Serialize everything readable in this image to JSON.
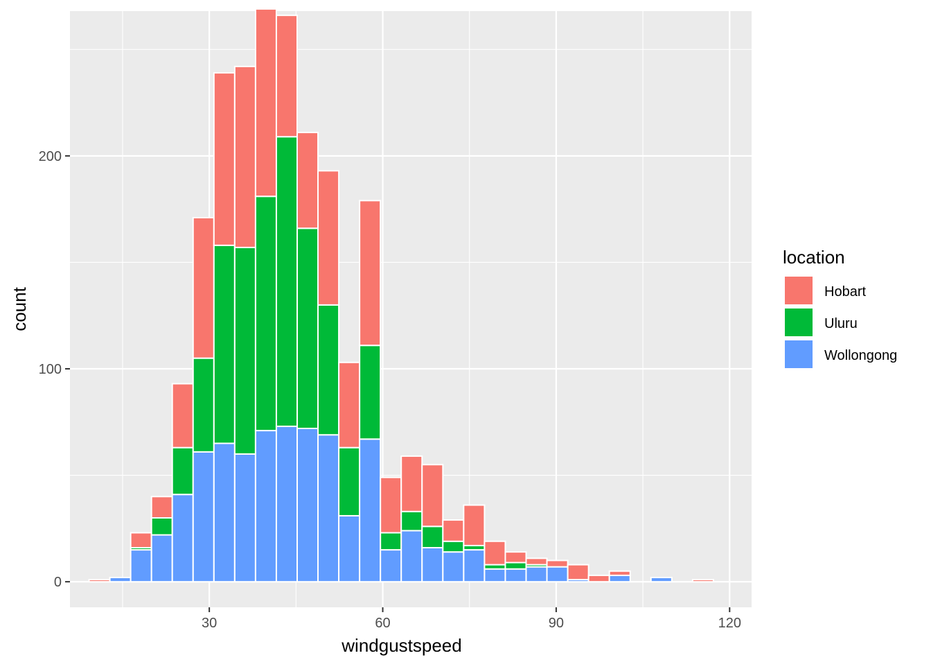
{
  "chart_data": {
    "type": "bar",
    "stacked": true,
    "binwidth": 3.6,
    "xlabel": "windgustspeed",
    "ylabel": "count",
    "xlim": [
      5.9,
      123.8
    ],
    "ylim": [
      -12,
      268
    ],
    "xticks": [
      30,
      60,
      90,
      120
    ],
    "xtick_labels": [
      "30",
      "60",
      "90",
      "120"
    ],
    "yticks": [
      0,
      100,
      200
    ],
    "ytick_labels": [
      "0",
      "100",
      "200"
    ],
    "grid": true,
    "legend_position": "right",
    "legend_title": "location",
    "x": [
      11.0,
      14.6,
      18.2,
      21.8,
      25.4,
      29.0,
      32.6,
      36.2,
      39.8,
      43.4,
      47.0,
      50.6,
      54.2,
      57.8,
      61.4,
      65.0,
      68.6,
      72.2,
      75.8,
      79.4,
      83.0,
      86.6,
      90.2,
      93.8,
      97.4,
      101.0,
      104.6,
      108.2,
      111.8,
      115.4
    ],
    "series": [
      {
        "name": "Hobart",
        "color": "#F8766D",
        "values": [
          1,
          0,
          7,
          10,
          30,
          66,
          81,
          85,
          88,
          57,
          45,
          63,
          40,
          68,
          26,
          26,
          29,
          10,
          19,
          11,
          5,
          3,
          3,
          7,
          3,
          2,
          0,
          0,
          0,
          1
        ]
      },
      {
        "name": "Uluru",
        "color": "#00BA38",
        "values": [
          0,
          0,
          1,
          8,
          22,
          44,
          93,
          97,
          110,
          136,
          94,
          61,
          32,
          44,
          8,
          9,
          10,
          5,
          2,
          2,
          3,
          1,
          0,
          0,
          0,
          0,
          0,
          0,
          0,
          0
        ]
      },
      {
        "name": "Wollongong",
        "color": "#619CFF",
        "values": [
          0,
          2,
          15,
          22,
          41,
          61,
          65,
          60,
          71,
          73,
          72,
          69,
          31,
          67,
          15,
          24,
          16,
          14,
          15,
          6,
          6,
          7,
          7,
          1,
          0,
          3,
          0,
          2,
          0,
          0
        ]
      }
    ]
  }
}
